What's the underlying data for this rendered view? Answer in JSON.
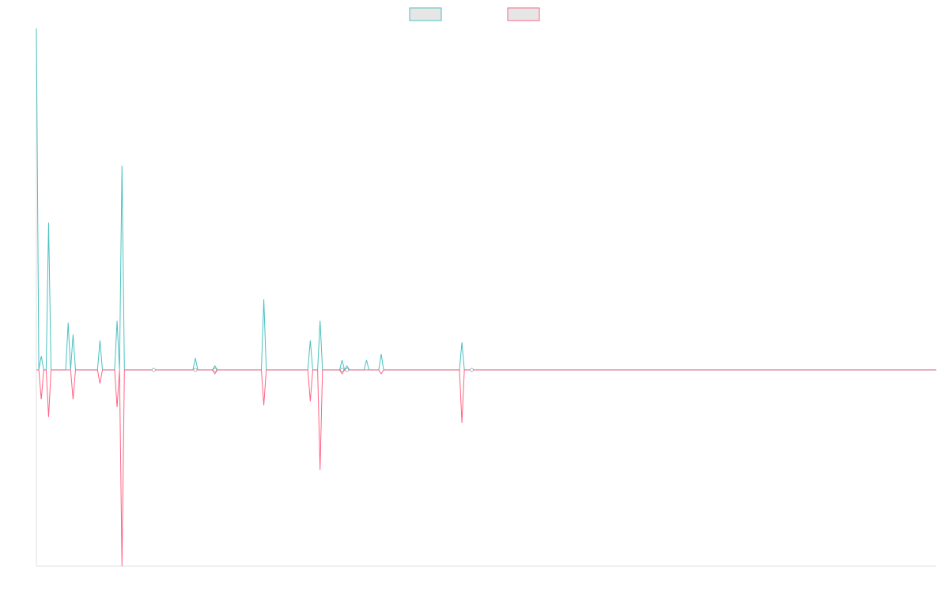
{
  "chart_data": {
    "type": "line",
    "title": "",
    "xlabel": "",
    "ylabel": "",
    "xlim": [
      0,
      184
    ],
    "ylim": [
      -1.0,
      1.74
    ],
    "grid": false,
    "legend_position": "top-center",
    "series": [
      {
        "color": "#4bc0c0",
        "fill": "#e6e6e6",
        "points": [
          [
            0,
            1.74
          ],
          [
            0.5,
            0
          ],
          [
            1,
            0.07
          ],
          [
            1.5,
            0
          ],
          [
            2,
            0
          ],
          [
            2.5,
            0.75
          ],
          [
            3,
            0
          ],
          [
            6,
            0
          ],
          [
            6.5,
            0.24
          ],
          [
            7,
            0
          ],
          [
            7.5,
            0.18
          ],
          [
            8,
            0
          ],
          [
            12.5,
            0
          ],
          [
            13,
            0.15
          ],
          [
            13.5,
            0
          ],
          [
            16,
            0
          ],
          [
            16.5,
            0.25
          ],
          [
            17,
            0
          ],
          [
            17.5,
            1.04
          ],
          [
            18,
            0
          ],
          [
            32,
            0
          ],
          [
            32.5,
            0.06
          ],
          [
            33,
            0
          ],
          [
            36,
            0
          ],
          [
            36.5,
            0.02
          ],
          [
            37,
            0
          ],
          [
            46,
            0
          ],
          [
            46.5,
            0.36
          ],
          [
            47,
            0
          ],
          [
            55.5,
            0
          ],
          [
            56,
            0.15
          ],
          [
            56.5,
            0
          ],
          [
            57.5,
            0
          ],
          [
            58,
            0.25
          ],
          [
            58.5,
            0
          ],
          [
            62,
            0
          ],
          [
            62.5,
            0.05
          ],
          [
            63,
            0
          ],
          [
            63.5,
            0.02
          ],
          [
            64,
            0
          ],
          [
            67,
            0
          ],
          [
            67.5,
            0.05
          ],
          [
            68,
            0
          ],
          [
            70,
            0
          ],
          [
            70.5,
            0.08
          ],
          [
            71,
            0
          ],
          [
            86.5,
            0
          ],
          [
            87,
            0.14
          ],
          [
            87.5,
            0
          ],
          [
            184,
            0
          ]
        ]
      },
      {
        "color": "#ff6384",
        "fill": "#e6e6e6",
        "points": [
          [
            0,
            0
          ],
          [
            0.5,
            0
          ],
          [
            1,
            -0.15
          ],
          [
            1.5,
            0
          ],
          [
            2,
            0
          ],
          [
            2.5,
            -0.24
          ],
          [
            3,
            0
          ],
          [
            7,
            0
          ],
          [
            7.5,
            -0.15
          ],
          [
            8,
            0
          ],
          [
            12.5,
            0
          ],
          [
            13,
            -0.07
          ],
          [
            13.5,
            0
          ],
          [
            16,
            0
          ],
          [
            16.5,
            -0.19
          ],
          [
            17,
            0
          ],
          [
            17.5,
            -1.0
          ],
          [
            18,
            0
          ],
          [
            36,
            0
          ],
          [
            36.5,
            -0.02
          ],
          [
            37,
            0
          ],
          [
            46,
            0
          ],
          [
            46.5,
            -0.18
          ],
          [
            47,
            0
          ],
          [
            55.5,
            0
          ],
          [
            56,
            -0.16
          ],
          [
            56.5,
            0
          ],
          [
            57.5,
            0
          ],
          [
            58,
            -0.51
          ],
          [
            58.5,
            0
          ],
          [
            62,
            0
          ],
          [
            62.5,
            -0.02
          ],
          [
            63,
            0
          ],
          [
            70,
            0
          ],
          [
            70.5,
            -0.02
          ],
          [
            71,
            0
          ],
          [
            86.5,
            0
          ],
          [
            87,
            -0.27
          ],
          [
            87.5,
            0
          ],
          [
            184,
            0
          ]
        ]
      }
    ],
    "markers": [
      24,
      32.5,
      36.5,
      62.5,
      63.5,
      89
    ]
  }
}
